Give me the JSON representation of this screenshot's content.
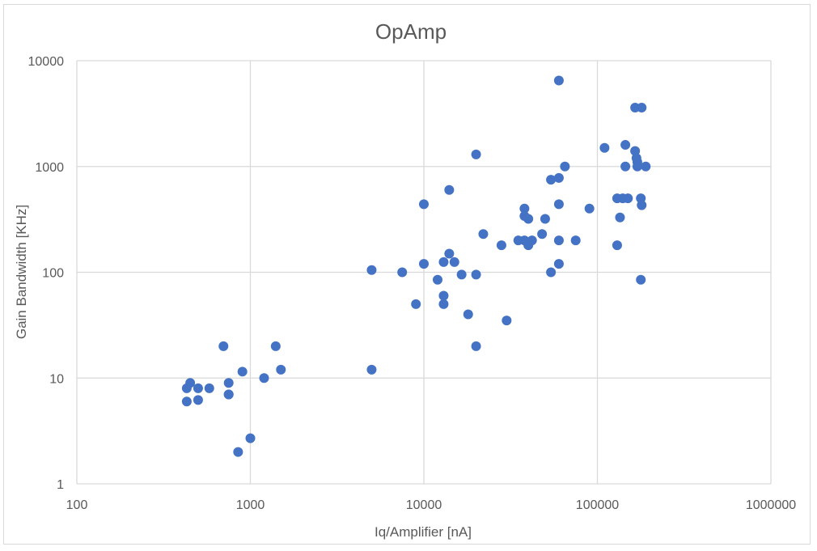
{
  "colors": {
    "marker": "#4472C4",
    "grid": "#d9d9d9",
    "text": "#595959"
  },
  "chart_data": {
    "type": "scatter",
    "title": "OpAmp",
    "xlabel": "Iq/Amplifier [nA]",
    "ylabel": "Gain Bandwidth [KHz]",
    "x_scale": "log",
    "y_scale": "log",
    "xlim": [
      100,
      1000000
    ],
    "ylim": [
      1,
      10000
    ],
    "x_ticks": [
      "100",
      "1000",
      "10000",
      "100000",
      "1000000"
    ],
    "y_ticks": [
      "1",
      "10",
      "100",
      "1000",
      "10000"
    ],
    "grid": true,
    "legend": "none",
    "series": [
      {
        "points": [
          [
            430,
            8
          ],
          [
            430,
            6
          ],
          [
            450,
            9
          ],
          [
            500,
            8
          ],
          [
            500,
            6.2
          ],
          [
            580,
            8
          ],
          [
            700,
            20
          ],
          [
            750,
            9
          ],
          [
            750,
            7
          ],
          [
            750,
            7
          ],
          [
            850,
            2
          ],
          [
            900,
            11.5
          ],
          [
            1000,
            2.7
          ],
          [
            1200,
            10
          ],
          [
            1400,
            20
          ],
          [
            1500,
            12
          ],
          [
            5000,
            105
          ],
          [
            5000,
            12
          ],
          [
            7500,
            100
          ],
          [
            9000,
            50
          ],
          [
            10000,
            440
          ],
          [
            10000,
            120
          ],
          [
            12000,
            85
          ],
          [
            13000,
            125
          ],
          [
            13000,
            60
          ],
          [
            13000,
            50
          ],
          [
            14000,
            600
          ],
          [
            14000,
            150
          ],
          [
            15000,
            125
          ],
          [
            16500,
            95
          ],
          [
            18000,
            40
          ],
          [
            20000,
            1300
          ],
          [
            20000,
            95
          ],
          [
            20000,
            20
          ],
          [
            22000,
            230
          ],
          [
            28000,
            180
          ],
          [
            30000,
            35
          ],
          [
            35000,
            200
          ],
          [
            38000,
            400
          ],
          [
            38000,
            340
          ],
          [
            38000,
            200
          ],
          [
            40000,
            320
          ],
          [
            40000,
            180
          ],
          [
            42000,
            200
          ],
          [
            48000,
            230
          ],
          [
            50000,
            320
          ],
          [
            54000,
            750
          ],
          [
            54000,
            100
          ],
          [
            60000,
            6500
          ],
          [
            60000,
            780
          ],
          [
            60000,
            440
          ],
          [
            60000,
            200
          ],
          [
            60000,
            120
          ],
          [
            65000,
            1000
          ],
          [
            75000,
            200
          ],
          [
            90000,
            400
          ],
          [
            110000,
            1500
          ],
          [
            130000,
            500
          ],
          [
            130000,
            180
          ],
          [
            135000,
            330
          ],
          [
            140000,
            500
          ],
          [
            145000,
            1600
          ],
          [
            145000,
            1000
          ],
          [
            150000,
            500
          ],
          [
            165000,
            3600
          ],
          [
            165000,
            1400
          ],
          [
            168000,
            1200
          ],
          [
            170000,
            1100
          ],
          [
            170000,
            1000
          ],
          [
            178000,
            500
          ],
          [
            180000,
            3600
          ],
          [
            180000,
            430
          ],
          [
            178000,
            85
          ],
          [
            190000,
            1000
          ]
        ]
      }
    ]
  }
}
